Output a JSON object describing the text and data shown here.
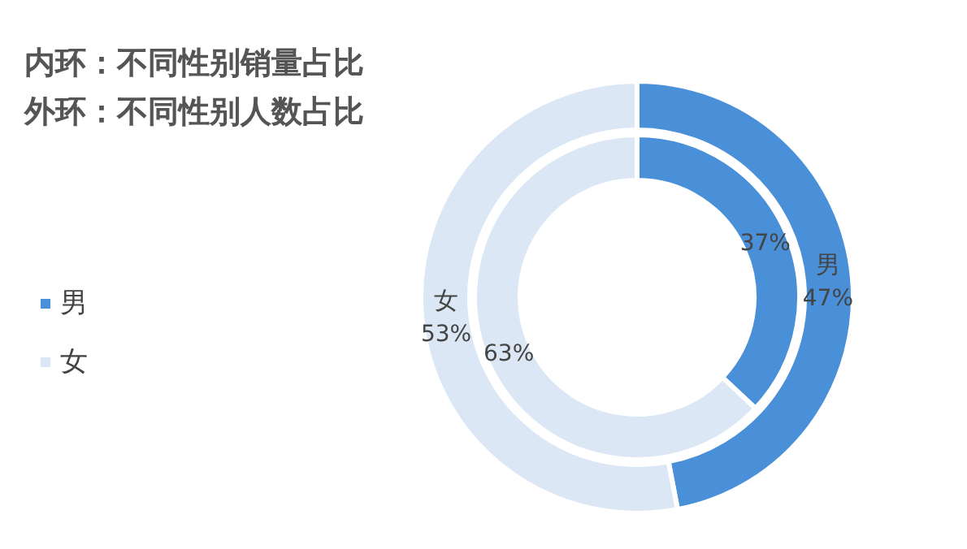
{
  "chart_data": {
    "type": "donut",
    "title": "内环：不同性别销量占比",
    "subtitle": "外环：不同性别人数占比",
    "categories": [
      "男",
      "女"
    ],
    "colors": [
      "#4a90d9",
      "#dbe7f5"
    ],
    "series": [
      {
        "values": [
          37,
          63
        ],
        "value_labels": [
          "37%",
          "63%"
        ]
      },
      {
        "values": [
          47,
          53
        ],
        "value_labels": [
          "47%",
          "53%"
        ]
      }
    ],
    "legend": "left"
  }
}
